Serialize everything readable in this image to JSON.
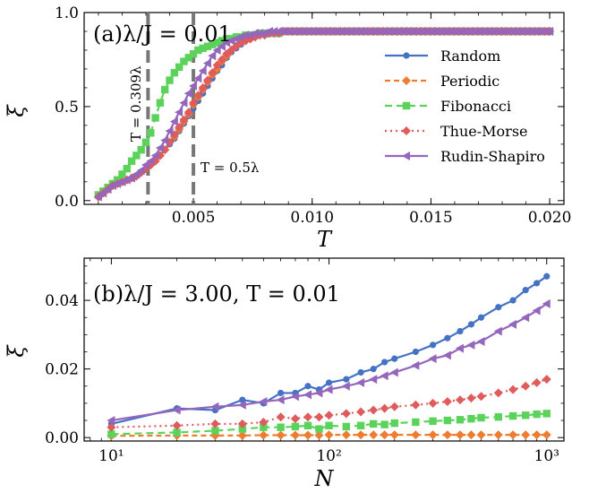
{
  "chart_data": [
    {
      "type": "line",
      "panel_label": "(a)λ/J = 0.01",
      "xlabel": "T",
      "ylabel": "ξ̅",
      "xlim": [
        0.0004,
        0.0206
      ],
      "ylim": [
        -0.02,
        1.0
      ],
      "xticks": [
        0.005,
        0.01,
        0.015,
        0.02
      ],
      "xtick_labels": [
        "0.005",
        "0.010",
        "0.015",
        "0.020"
      ],
      "yticks": [
        0.0,
        0.5,
        1.0
      ],
      "ytick_labels": [
        "0.0",
        "0.5",
        "1.0"
      ],
      "vlines": [
        {
          "x": 0.00309,
          "label": "T = 0.309λ"
        },
        {
          "x": 0.005,
          "label": "T = 0.5λ"
        }
      ],
      "legend": {
        "position": "right",
        "entries": [
          "Random",
          "Periodic",
          "Fibonacci",
          "Thue-Morse",
          "Rudin-Shapiro"
        ]
      },
      "series": [
        {
          "name": "Random",
          "color": "#4472c4",
          "marker": "circle",
          "dash": "",
          "x_start": 0.001,
          "x_step": 0.0002,
          "values": [
            0.02,
            0.04,
            0.06,
            0.08,
            0.09,
            0.1,
            0.11,
            0.12,
            0.13,
            0.15,
            0.17,
            0.19,
            0.21,
            0.24,
            0.27,
            0.3,
            0.33,
            0.37,
            0.41,
            0.45,
            0.49,
            0.53,
            0.57,
            0.61,
            0.65,
            0.69,
            0.72,
            0.76,
            0.79,
            0.81,
            0.83,
            0.85,
            0.86,
            0.87,
            0.88,
            0.88,
            0.89,
            0.89,
            0.89,
            0.9,
            0.9,
            0.9,
            0.9,
            0.9,
            0.9,
            0.9,
            0.9,
            0.9,
            0.9,
            0.9,
            0.9,
            0.9,
            0.9,
            0.9,
            0.9,
            0.9,
            0.9,
            0.9,
            0.9,
            0.9,
            0.9,
            0.9,
            0.9,
            0.9,
            0.9,
            0.9,
            0.9,
            0.9,
            0.9,
            0.9,
            0.9,
            0.9,
            0.9,
            0.9,
            0.9,
            0.9,
            0.9,
            0.9,
            0.9,
            0.9,
            0.9,
            0.9,
            0.9,
            0.9,
            0.9,
            0.9,
            0.9,
            0.9,
            0.9,
            0.9,
            0.9,
            0.9,
            0.9,
            0.9,
            0.9,
            0.9
          ]
        },
        {
          "name": "Periodic",
          "color": "#ed7d31",
          "marker": "diamond",
          "dash": "6,4",
          "x_start": 0.001,
          "x_step": 0.0002,
          "values": [
            0.02,
            0.04,
            0.06,
            0.08,
            0.09,
            0.1,
            0.11,
            0.12,
            0.13,
            0.15,
            0.17,
            0.19,
            0.21,
            0.24,
            0.27,
            0.31,
            0.34,
            0.38,
            0.42,
            0.46,
            0.51,
            0.55,
            0.59,
            0.63,
            0.67,
            0.7,
            0.74,
            0.77,
            0.8,
            0.82,
            0.84,
            0.85,
            0.86,
            0.87,
            0.88,
            0.88,
            0.89,
            0.89,
            0.89,
            0.9,
            0.9,
            0.9,
            0.9,
            0.9,
            0.9,
            0.9,
            0.9,
            0.9,
            0.9,
            0.9,
            0.9,
            0.9,
            0.9,
            0.9,
            0.9,
            0.9,
            0.9,
            0.9,
            0.9,
            0.9,
            0.9,
            0.9,
            0.9,
            0.9,
            0.9,
            0.9,
            0.9,
            0.9,
            0.9,
            0.9,
            0.9,
            0.9,
            0.9,
            0.9,
            0.9,
            0.9,
            0.9,
            0.9,
            0.9,
            0.9,
            0.9,
            0.9,
            0.9,
            0.9,
            0.9,
            0.9,
            0.9,
            0.9,
            0.9,
            0.9,
            0.9,
            0.9,
            0.9,
            0.9,
            0.9,
            0.9
          ]
        },
        {
          "name": "Fibonacci",
          "color": "#5bd35b",
          "marker": "square",
          "dash": "8,5",
          "x_start": 0.001,
          "x_step": 0.0002,
          "values": [
            0.03,
            0.05,
            0.07,
            0.09,
            0.11,
            0.14,
            0.17,
            0.21,
            0.24,
            0.27,
            0.31,
            0.36,
            0.44,
            0.52,
            0.59,
            0.64,
            0.68,
            0.71,
            0.74,
            0.76,
            0.78,
            0.8,
            0.81,
            0.82,
            0.83,
            0.84,
            0.85,
            0.86,
            0.86,
            0.87,
            0.87,
            0.88,
            0.88,
            0.88,
            0.89,
            0.89,
            0.89,
            0.89,
            0.89,
            0.9,
            0.9,
            0.9,
            0.9,
            0.9,
            0.9,
            0.9,
            0.9,
            0.9,
            0.9,
            0.9,
            0.9,
            0.9,
            0.9,
            0.9,
            0.9,
            0.9,
            0.9,
            0.9,
            0.9,
            0.9,
            0.9,
            0.9,
            0.9,
            0.9,
            0.9,
            0.9,
            0.9,
            0.9,
            0.9,
            0.9,
            0.9,
            0.9,
            0.9,
            0.9,
            0.9,
            0.9,
            0.9,
            0.9,
            0.9,
            0.9,
            0.9,
            0.9,
            0.9,
            0.9,
            0.9,
            0.9,
            0.9,
            0.9,
            0.9,
            0.9,
            0.9,
            0.9,
            0.9,
            0.9,
            0.9,
            0.9
          ]
        },
        {
          "name": "Thue-Morse",
          "color": "#e05b5b",
          "marker": "diamond",
          "dash": "2,4",
          "x_start": 0.001,
          "x_step": 0.0002,
          "values": [
            0.02,
            0.04,
            0.06,
            0.08,
            0.09,
            0.1,
            0.11,
            0.12,
            0.13,
            0.15,
            0.17,
            0.19,
            0.21,
            0.24,
            0.27,
            0.31,
            0.35,
            0.39,
            0.43,
            0.47,
            0.52,
            0.56,
            0.6,
            0.64,
            0.68,
            0.72,
            0.75,
            0.78,
            0.8,
            0.82,
            0.84,
            0.85,
            0.86,
            0.87,
            0.88,
            0.88,
            0.89,
            0.89,
            0.89,
            0.9,
            0.9,
            0.9,
            0.9,
            0.9,
            0.9,
            0.9,
            0.9,
            0.9,
            0.9,
            0.9,
            0.9,
            0.9,
            0.9,
            0.9,
            0.9,
            0.9,
            0.9,
            0.9,
            0.9,
            0.9,
            0.9,
            0.9,
            0.9,
            0.9,
            0.9,
            0.9,
            0.9,
            0.9,
            0.9,
            0.9,
            0.9,
            0.9,
            0.9,
            0.9,
            0.9,
            0.9,
            0.9,
            0.9,
            0.9,
            0.9,
            0.9,
            0.9,
            0.9,
            0.9,
            0.9,
            0.9,
            0.9,
            0.9,
            0.9,
            0.9,
            0.9,
            0.9,
            0.9,
            0.9,
            0.9,
            0.9
          ]
        },
        {
          "name": "Rudin-Shapiro",
          "color": "#9467bd",
          "marker": "triangle-left",
          "dash": "",
          "x_start": 0.001,
          "x_step": 0.0002,
          "values": [
            0.02,
            0.04,
            0.06,
            0.08,
            0.09,
            0.1,
            0.11,
            0.12,
            0.14,
            0.16,
            0.19,
            0.21,
            0.24,
            0.28,
            0.32,
            0.37,
            0.42,
            0.47,
            0.52,
            0.57,
            0.61,
            0.65,
            0.69,
            0.73,
            0.77,
            0.8,
            0.82,
            0.84,
            0.85,
            0.86,
            0.87,
            0.88,
            0.88,
            0.89,
            0.89,
            0.89,
            0.9,
            0.9,
            0.9,
            0.9,
            0.9,
            0.9,
            0.9,
            0.9,
            0.9,
            0.9,
            0.9,
            0.9,
            0.9,
            0.9,
            0.9,
            0.9,
            0.9,
            0.9,
            0.9,
            0.9,
            0.9,
            0.9,
            0.9,
            0.9,
            0.9,
            0.9,
            0.9,
            0.9,
            0.9,
            0.9,
            0.9,
            0.9,
            0.9,
            0.9,
            0.9,
            0.9,
            0.9,
            0.9,
            0.9,
            0.9,
            0.9,
            0.9,
            0.9,
            0.9,
            0.9,
            0.9,
            0.9,
            0.9,
            0.9,
            0.9,
            0.9,
            0.9,
            0.9,
            0.9,
            0.9,
            0.9,
            0.9,
            0.9,
            0.9,
            0.9
          ]
        }
      ]
    },
    {
      "type": "line",
      "panel_label": "(b)λ/J = 3.00, T = 0.01",
      "xlabel": "N",
      "ylabel": "ξ̅",
      "xscale": "log",
      "xlim": [
        7.5,
        1200
      ],
      "ylim": [
        -0.001,
        0.0523
      ],
      "xticks": [
        10,
        100,
        1000
      ],
      "xtick_labels": [
        "10¹",
        "10²",
        "10³"
      ],
      "yticks": [
        0.0,
        0.02,
        0.04
      ],
      "ytick_labels": [
        "0.00",
        "0.02",
        "0.04"
      ],
      "series": [
        {
          "name": "Random",
          "color": "#4472c4",
          "marker": "circle",
          "dash": "",
          "x": [
            10,
            20,
            30,
            40,
            50,
            60,
            70,
            80,
            90,
            100,
            120,
            140,
            160,
            180,
            200,
            250,
            300,
            350,
            400,
            450,
            500,
            600,
            700,
            800,
            900,
            1000
          ],
          "values": [
            0.004,
            0.0085,
            0.008,
            0.011,
            0.01,
            0.013,
            0.013,
            0.015,
            0.014,
            0.016,
            0.017,
            0.019,
            0.02,
            0.022,
            0.023,
            0.025,
            0.027,
            0.029,
            0.031,
            0.033,
            0.035,
            0.038,
            0.04,
            0.043,
            0.045,
            0.047
          ]
        },
        {
          "name": "Periodic",
          "color": "#ed7d31",
          "marker": "diamond",
          "dash": "6,4",
          "x": [
            10,
            20,
            30,
            40,
            50,
            60,
            70,
            80,
            90,
            100,
            120,
            140,
            160,
            180,
            200,
            250,
            300,
            350,
            400,
            450,
            500,
            600,
            700,
            800,
            900,
            1000
          ],
          "values": [
            0.0005,
            0.0006,
            0.0006,
            0.0006,
            0.0007,
            0.0007,
            0.0007,
            0.0007,
            0.0007,
            0.0008,
            0.0008,
            0.0008,
            0.0008,
            0.0008,
            0.0008,
            0.0008,
            0.0008,
            0.0008,
            0.0008,
            0.0008,
            0.0008,
            0.0008,
            0.0008,
            0.0008,
            0.0008,
            0.0008
          ]
        },
        {
          "name": "Fibonacci",
          "color": "#5bd35b",
          "marker": "square",
          "dash": "8,5",
          "x": [
            10,
            20,
            30,
            40,
            50,
            60,
            70,
            80,
            90,
            100,
            120,
            140,
            160,
            180,
            200,
            250,
            300,
            350,
            400,
            450,
            500,
            600,
            700,
            800,
            900,
            1000
          ],
          "values": [
            0.001,
            0.0015,
            0.002,
            0.0025,
            0.003,
            0.003,
            0.0032,
            0.0035,
            0.0025,
            0.0035,
            0.0032,
            0.0035,
            0.004,
            0.0038,
            0.0042,
            0.0045,
            0.0048,
            0.005,
            0.0052,
            0.0055,
            0.0058,
            0.006,
            0.0063,
            0.0065,
            0.0068,
            0.007
          ]
        },
        {
          "name": "Thue-Morse",
          "color": "#e05b5b",
          "marker": "diamond",
          "dash": "2,4",
          "x": [
            10,
            20,
            30,
            40,
            50,
            60,
            70,
            80,
            90,
            100,
            120,
            140,
            160,
            180,
            200,
            250,
            300,
            350,
            400,
            450,
            500,
            600,
            700,
            800,
            900,
            1000
          ],
          "values": [
            0.003,
            0.0035,
            0.004,
            0.004,
            0.0045,
            0.006,
            0.0055,
            0.006,
            0.006,
            0.0065,
            0.007,
            0.0075,
            0.008,
            0.0085,
            0.009,
            0.0095,
            0.01,
            0.0105,
            0.011,
            0.0115,
            0.012,
            0.013,
            0.014,
            0.015,
            0.016,
            0.017
          ]
        },
        {
          "name": "Rudin-Shapiro",
          "color": "#9467bd",
          "marker": "triangle-left",
          "dash": "",
          "x": [
            10,
            20,
            30,
            40,
            50,
            60,
            70,
            80,
            90,
            100,
            120,
            140,
            160,
            180,
            200,
            250,
            300,
            350,
            400,
            450,
            500,
            600,
            700,
            800,
            900,
            1000
          ],
          "values": [
            0.005,
            0.008,
            0.009,
            0.0095,
            0.0105,
            0.011,
            0.012,
            0.0125,
            0.013,
            0.014,
            0.015,
            0.016,
            0.017,
            0.018,
            0.019,
            0.021,
            0.023,
            0.024,
            0.026,
            0.027,
            0.028,
            0.031,
            0.033,
            0.035,
            0.037,
            0.039
          ]
        }
      ]
    }
  ]
}
